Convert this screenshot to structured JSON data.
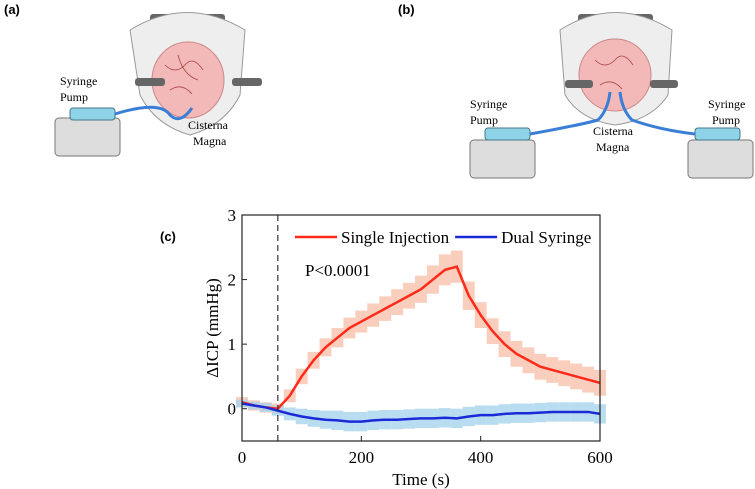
{
  "panels": [
    {
      "label": "(a)",
      "pump": [
        "Syringe",
        "Pump"
      ],
      "site": [
        "Cisterna",
        "Magna"
      ]
    },
    {
      "label": "(b)",
      "pump_left": [
        "Syringe",
        "Pump"
      ],
      "site": [
        "Cisterna",
        "Magna"
      ],
      "pump_right": [
        "Syringe",
        "Pump"
      ]
    }
  ],
  "chart_data": {
    "type": "line",
    "panel_label": "(c)",
    "x_label": "Time (s)",
    "y_label": "ΔICP (mmHg)",
    "annotation": "P<0.0001",
    "vline": 60,
    "legend": "top",
    "xlim": [
      0,
      600
    ],
    "xticks": [
      0,
      200,
      400,
      600
    ],
    "ylim": [
      -0.5,
      3
    ],
    "yticks": [
      0,
      1,
      2,
      3
    ],
    "x": [
      0,
      20,
      40,
      60,
      80,
      100,
      120,
      140,
      160,
      180,
      200,
      220,
      240,
      260,
      280,
      300,
      320,
      340,
      360,
      380,
      400,
      420,
      440,
      460,
      480,
      500,
      520,
      540,
      560,
      580,
      600
    ],
    "series": [
      {
        "name": "Single Injection",
        "color": "#ff2a1a",
        "band_color": "#f9c2ab",
        "values": [
          0.1,
          0.05,
          0.02,
          0.0,
          0.2,
          0.5,
          0.75,
          0.95,
          1.1,
          1.25,
          1.35,
          1.45,
          1.55,
          1.65,
          1.75,
          1.85,
          2.0,
          2.15,
          2.2,
          1.75,
          1.45,
          1.2,
          1.0,
          0.85,
          0.75,
          0.65,
          0.6,
          0.55,
          0.5,
          0.45,
          0.4
        ],
        "errors": [
          0.08,
          0.08,
          0.08,
          0.08,
          0.1,
          0.12,
          0.13,
          0.14,
          0.15,
          0.16,
          0.17,
          0.18,
          0.19,
          0.2,
          0.2,
          0.21,
          0.22,
          0.24,
          0.25,
          0.22,
          0.2,
          0.2,
          0.2,
          0.2,
          0.2,
          0.2,
          0.2,
          0.2,
          0.2,
          0.2,
          0.2
        ]
      },
      {
        "name": "Dual Syringe",
        "color": "#1a2ad6",
        "band_color": "#a8d4ec",
        "values": [
          0.08,
          0.05,
          0.02,
          -0.03,
          -0.08,
          -0.12,
          -0.15,
          -0.17,
          -0.18,
          -0.2,
          -0.2,
          -0.18,
          -0.17,
          -0.17,
          -0.16,
          -0.15,
          -0.15,
          -0.14,
          -0.15,
          -0.12,
          -0.1,
          -0.1,
          -0.08,
          -0.07,
          -0.07,
          -0.06,
          -0.05,
          -0.05,
          -0.05,
          -0.05,
          -0.08
        ],
        "errors": [
          0.06,
          0.06,
          0.07,
          0.08,
          0.1,
          0.12,
          0.13,
          0.14,
          0.15,
          0.15,
          0.15,
          0.15,
          0.15,
          0.15,
          0.15,
          0.15,
          0.15,
          0.15,
          0.15,
          0.15,
          0.15,
          0.15,
          0.15,
          0.15,
          0.15,
          0.15,
          0.15,
          0.15,
          0.15,
          0.15,
          0.15
        ]
      }
    ]
  }
}
